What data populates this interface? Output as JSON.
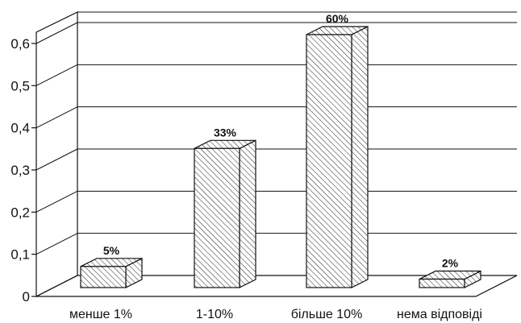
{
  "chart_data": {
    "type": "bar",
    "title": "",
    "xlabel": "",
    "ylabel": "",
    "categories": [
      "менше 1%",
      "1-10%",
      "більше 10%",
      "нема відповіді"
    ],
    "values": [
      0.05,
      0.33,
      0.6,
      0.02
    ],
    "data_labels": [
      "5%",
      "33%",
      "60%",
      "2%"
    ],
    "yticks": [
      "0",
      "0,1",
      "0,2",
      "0,3",
      "0,4",
      "0,5",
      "0,6"
    ],
    "ylim": [
      0,
      0.6
    ],
    "grid": true,
    "style": "3d-hatched",
    "colors": {
      "ink": "#111111",
      "background": "#ffffff"
    }
  }
}
